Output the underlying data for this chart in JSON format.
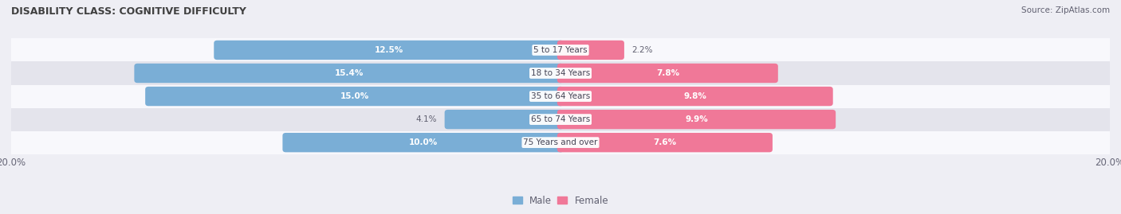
{
  "title": "DISABILITY CLASS: COGNITIVE DIFFICULTY",
  "source": "Source: ZipAtlas.com",
  "categories": [
    "5 to 17 Years",
    "18 to 34 Years",
    "35 to 64 Years",
    "65 to 74 Years",
    "75 Years and over"
  ],
  "male_values": [
    12.5,
    15.4,
    15.0,
    4.1,
    10.0
  ],
  "female_values": [
    2.2,
    7.8,
    9.8,
    9.9,
    7.6
  ],
  "male_color": "#7aaed6",
  "female_color": "#f07898",
  "axis_max": 20.0,
  "bg_color": "#eeeef4",
  "row_bg_color": "#f8f8fc",
  "row_alt_color": "#e4e4ec",
  "title_color": "#404040",
  "label_color": "#606070",
  "axis_label_color": "#666677",
  "legend_male_color": "#7aaed6",
  "legend_female_color": "#f07898"
}
